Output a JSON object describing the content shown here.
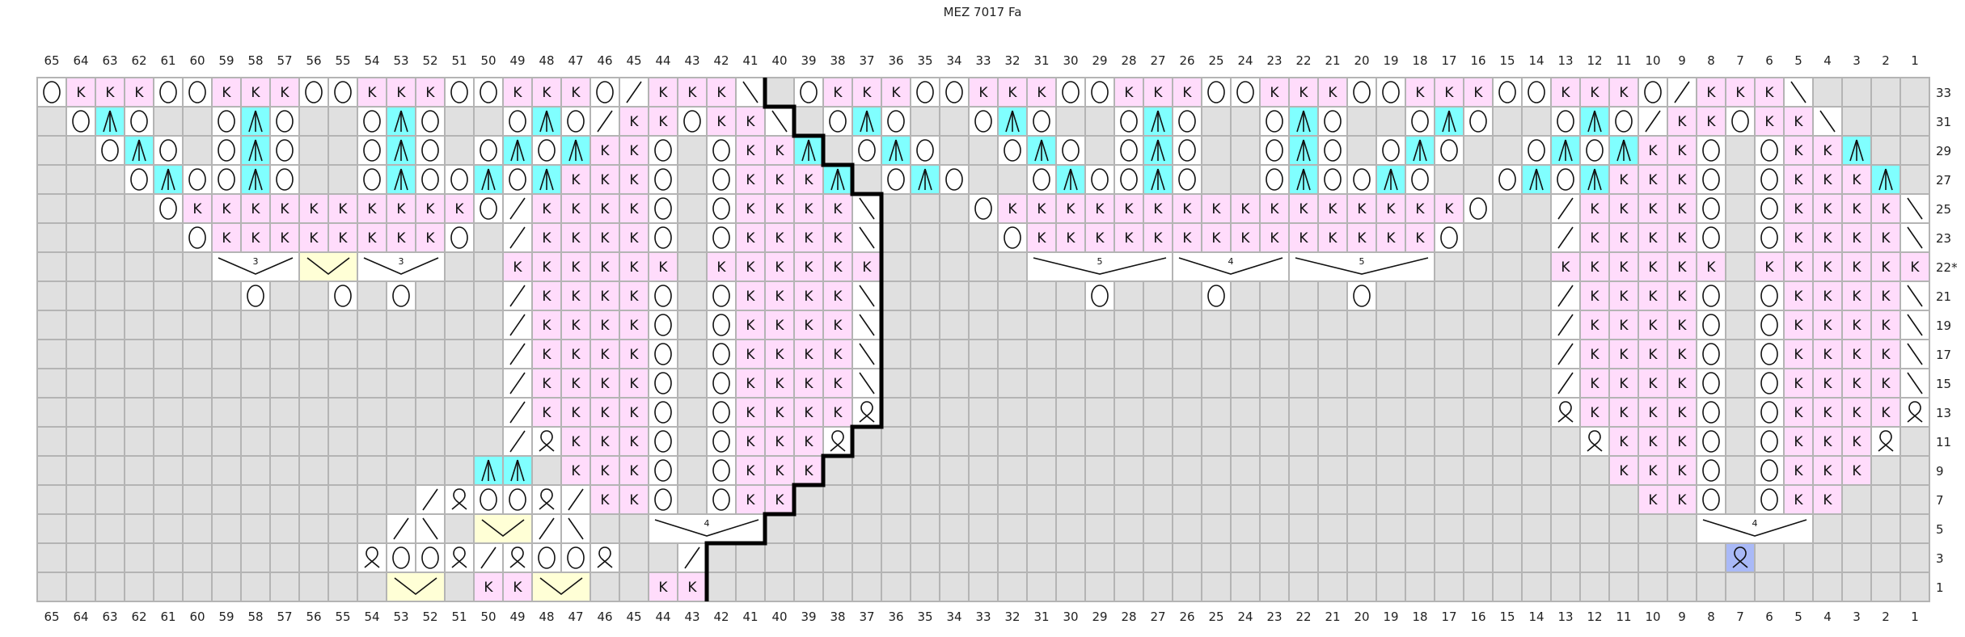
{
  "title": "MEZ 7017 Fa",
  "colors": {
    "knit": "#ffdcfb",
    "yarn_over": "#ffffff",
    "decrease": "#80ffff",
    "no_stitch": "#e0e0e0",
    "gather": "#ffffd6",
    "highlight": "#a9b9f7",
    "grid": "#b4b4b4",
    "boundary": "#000000"
  },
  "legend_codes": {
    "K": "knit",
    "O": "yarn-over",
    "L": "k2tog",
    "R": "ssk",
    "A": "centered-double-decrease",
    "Q": "twisted-stitch",
    "B": "twisted-stitch-highlighted",
    ".": "no-stitch",
    "-": "part-of-group"
  },
  "knit_label": "K",
  "columns": [
    65,
    64,
    63,
    62,
    61,
    60,
    59,
    58,
    57,
    56,
    55,
    54,
    53,
    52,
    51,
    50,
    49,
    48,
    47,
    46,
    45,
    44,
    43,
    42,
    41,
    40,
    39,
    38,
    37,
    36,
    35,
    34,
    33,
    32,
    31,
    30,
    29,
    28,
    27,
    26,
    25,
    24,
    23,
    22,
    21,
    20,
    19,
    18,
    17,
    16,
    15,
    14,
    13,
    12,
    11,
    10,
    9,
    8,
    7,
    6,
    5,
    4,
    3,
    2,
    1
  ],
  "rows": [
    {
      "label": "33",
      "cells": "OKKKOOKKKOOKKKOOKKKOLKKKR.OKKKOOKKKOOKKKOOKKKOOKKKOOKKKOLKKKR....",
      "groups": []
    },
    {
      "label": "31",
      "cells": ".OAO..OAO..OAO..OAOLKKOKKR.OAO..OAO..OAO..OAO..OAO..OAOLKKOKKR...",
      "groups": []
    },
    {
      "label": "29",
      "cells": "..OAO.OAO..OAO.OAOAKKO.OKKA.OAO..OAO.OAO..OAO.OAO..OAOAKKO.OKKA..",
      "groups": []
    },
    {
      "label": "27",
      "cells": "...OAOOAO..OAOOAOAKKKO.OKKKA.OAO..OAOOAO..OAOOAO..OAOAKKKO.OKKKA.",
      "groups": []
    },
    {
      "label": "25",
      "cells": "....OKKKKKKKKKKOLKKKKO.OKKKKR...OKKKKKKKKKKKKKKKKO..LKKKKO.OKKKKR",
      "groups": []
    },
    {
      "label": "23",
      "cells": ".....OKKKKKKKKO.LKKKKO.OKKKKR....OKKKKKKKKKKKKKKO...LKKKKO.OKKKKR",
      "groups": []
    },
    {
      "label": "22*",
      "cells": "......--------..KKKKKK.KKKKKK.....--------------....KKKKKK.KKKKKK",
      "groups": [
        {
          "from": 59,
          "to": 57,
          "type": "decrease",
          "label": "3"
        },
        {
          "from": 56,
          "to": 55,
          "type": "gather",
          "label": ""
        },
        {
          "from": 54,
          "to": 52,
          "type": "decrease",
          "label": "3"
        },
        {
          "from": 31,
          "to": 27,
          "type": "decrease",
          "label": "5"
        },
        {
          "from": 26,
          "to": 23,
          "type": "decrease",
          "label": "4"
        },
        {
          "from": 22,
          "to": 18,
          "type": "decrease",
          "label": "5"
        }
      ]
    },
    {
      "label": "21",
      "cells": ".......O..O.O...LKKKKO.OKKKKR.......O...O....O......LKKKKO.OKKKKR",
      "groups": []
    },
    {
      "label": "19",
      "cells": "................LKKKKO.OKKKKR.......................LKKKKO.OKKKKR",
      "groups": []
    },
    {
      "label": "17",
      "cells": "................LKKKKO.OKKKKR.......................LKKKKO.OKKKKR",
      "groups": []
    },
    {
      "label": "15",
      "cells": "................LKKKKO.OKKKKR.......................LKKKKO.OKKKKR",
      "groups": []
    },
    {
      "label": "13",
      "cells": "................LKKKKO.OKKKKQ.......................QKKKKO.OKKKKQ",
      "groups": []
    },
    {
      "label": "11",
      "cells": "................LQKKKO.OKKKQ.........................QKKKO.OKKKQ.",
      "groups": []
    },
    {
      "label": "9",
      "cells": "...............AA.KKKO.OKKK...........................KKKO.OKKK..",
      "groups": []
    },
    {
      "label": "7",
      "cells": ".............LQOOQLKKO.OKK.............................KKO.OKK...",
      "groups": []
    },
    {
      "label": "5",
      "cells": "............LR.--LR..----................................----....",
      "groups": [
        {
          "from": 50,
          "to": 49,
          "type": "gather",
          "label": ""
        },
        {
          "from": 44,
          "to": 41,
          "type": "decrease",
          "label": "4"
        },
        {
          "from": 8,
          "to": 5,
          "type": "decrease",
          "label": "4"
        }
      ]
    },
    {
      "label": "3",
      "cells": "...........QOOQLQOOQ..L...................................B......",
      "groups": []
    },
    {
      "label": "1",
      "cells": "............--.KK--..KK..........................................",
      "groups": [
        {
          "from": 53,
          "to": 52,
          "type": "gather",
          "label": ""
        },
        {
          "from": 48,
          "to": 47,
          "type": "gather",
          "label": ""
        }
      ]
    }
  ]
}
